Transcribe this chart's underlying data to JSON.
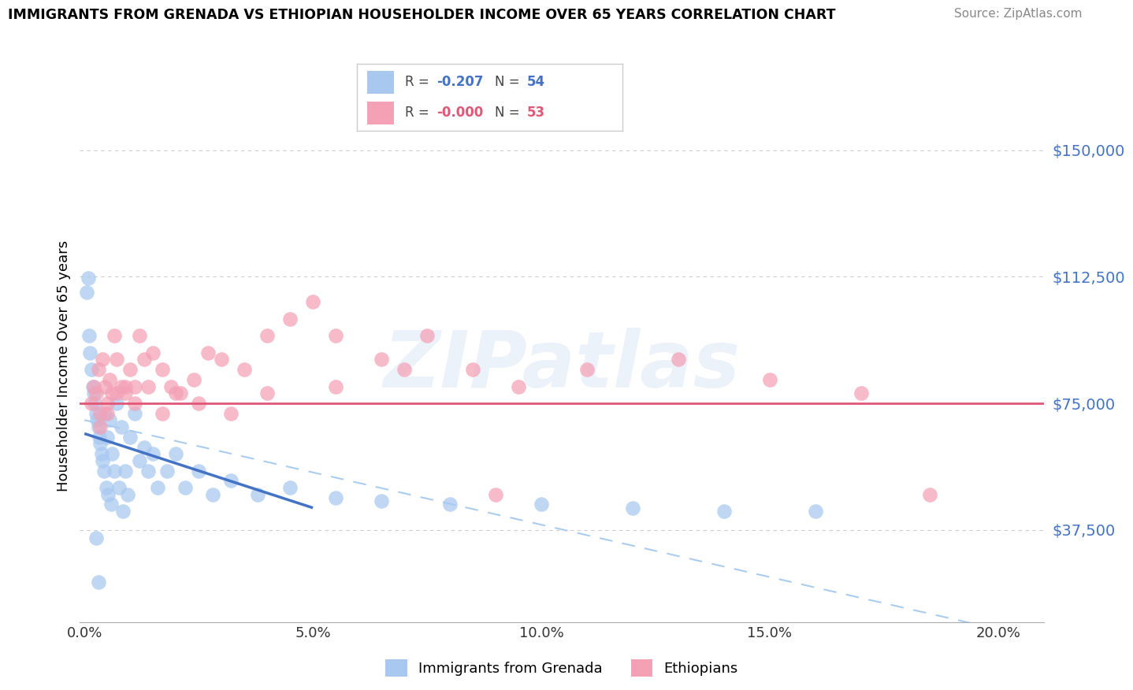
{
  "title": "IMMIGRANTS FROM GRENADA VS ETHIOPIAN HOUSEHOLDER INCOME OVER 65 YEARS CORRELATION CHART",
  "source": "Source: ZipAtlas.com",
  "ylabel": "Householder Income Over 65 years",
  "ytick_labels": [
    "$37,500",
    "$75,000",
    "$112,500",
    "$150,000"
  ],
  "ytick_vals": [
    37500,
    75000,
    112500,
    150000
  ],
  "xlim": [
    -0.1,
    21.0
  ],
  "ylim": [
    10000,
    162000
  ],
  "r_grenada": "-0.207",
  "n_grenada": "54",
  "r_ethiopian": "-0.000",
  "n_ethiopian": "53",
  "horizontal_line_y": 75000,
  "grenada_color": "#a8c8f0",
  "ethiopian_color": "#f4a0b5",
  "grenada_line_color": "#4472c4",
  "dashed_line_color": "#aaccee",
  "watermark_text": "ZIPatlas",
  "grenada_scatter_x": [
    0.05,
    0.08,
    0.1,
    0.12,
    0.15,
    0.18,
    0.2,
    0.22,
    0.25,
    0.28,
    0.3,
    0.32,
    0.35,
    0.38,
    0.4,
    0.42,
    0.45,
    0.48,
    0.5,
    0.52,
    0.55,
    0.58,
    0.6,
    0.65,
    0.7,
    0.75,
    0.8,
    0.85,
    0.9,
    0.95,
    1.0,
    1.1,
    1.2,
    1.3,
    1.4,
    1.5,
    1.6,
    1.8,
    2.0,
    2.2,
    2.5,
    2.8,
    3.2,
    3.8,
    4.5,
    5.5,
    6.5,
    8.0,
    10.0,
    12.0,
    14.0,
    16.0,
    0.25,
    0.3
  ],
  "grenada_scatter_y": [
    108000,
    112000,
    95000,
    90000,
    85000,
    80000,
    78000,
    75000,
    72000,
    70000,
    68000,
    65000,
    63000,
    60000,
    58000,
    55000,
    72000,
    50000,
    65000,
    48000,
    70000,
    45000,
    60000,
    55000,
    75000,
    50000,
    68000,
    43000,
    55000,
    48000,
    65000,
    72000,
    58000,
    62000,
    55000,
    60000,
    50000,
    55000,
    60000,
    50000,
    55000,
    48000,
    52000,
    48000,
    50000,
    47000,
    46000,
    45000,
    45000,
    44000,
    43000,
    43000,
    35000,
    22000
  ],
  "ethiopian_scatter_x": [
    0.15,
    0.2,
    0.25,
    0.3,
    0.35,
    0.4,
    0.45,
    0.5,
    0.55,
    0.6,
    0.65,
    0.7,
    0.8,
    0.9,
    1.0,
    1.1,
    1.2,
    1.3,
    1.5,
    1.7,
    1.9,
    2.1,
    2.4,
    2.7,
    3.0,
    3.5,
    4.0,
    4.5,
    5.0,
    5.5,
    6.5,
    7.5,
    8.5,
    9.5,
    11.0,
    13.0,
    15.0,
    17.0,
    18.5,
    0.35,
    0.5,
    0.7,
    0.9,
    1.1,
    1.4,
    1.7,
    2.0,
    2.5,
    3.2,
    4.0,
    5.5,
    7.0,
    9.0
  ],
  "ethiopian_scatter_y": [
    75000,
    80000,
    78000,
    85000,
    72000,
    88000,
    80000,
    75000,
    82000,
    78000,
    95000,
    88000,
    80000,
    78000,
    85000,
    80000,
    95000,
    88000,
    90000,
    85000,
    80000,
    78000,
    82000,
    90000,
    88000,
    85000,
    95000,
    100000,
    105000,
    95000,
    88000,
    95000,
    85000,
    80000,
    85000,
    88000,
    82000,
    78000,
    48000,
    68000,
    72000,
    78000,
    80000,
    75000,
    80000,
    72000,
    78000,
    75000,
    72000,
    78000,
    80000,
    85000,
    48000
  ],
  "grenada_line_x": [
    0,
    5.0
  ],
  "grenada_line_y": [
    66000,
    44000
  ],
  "dashed_line_x": [
    0,
    20.0
  ],
  "dashed_line_y": [
    70000,
    8000
  ]
}
